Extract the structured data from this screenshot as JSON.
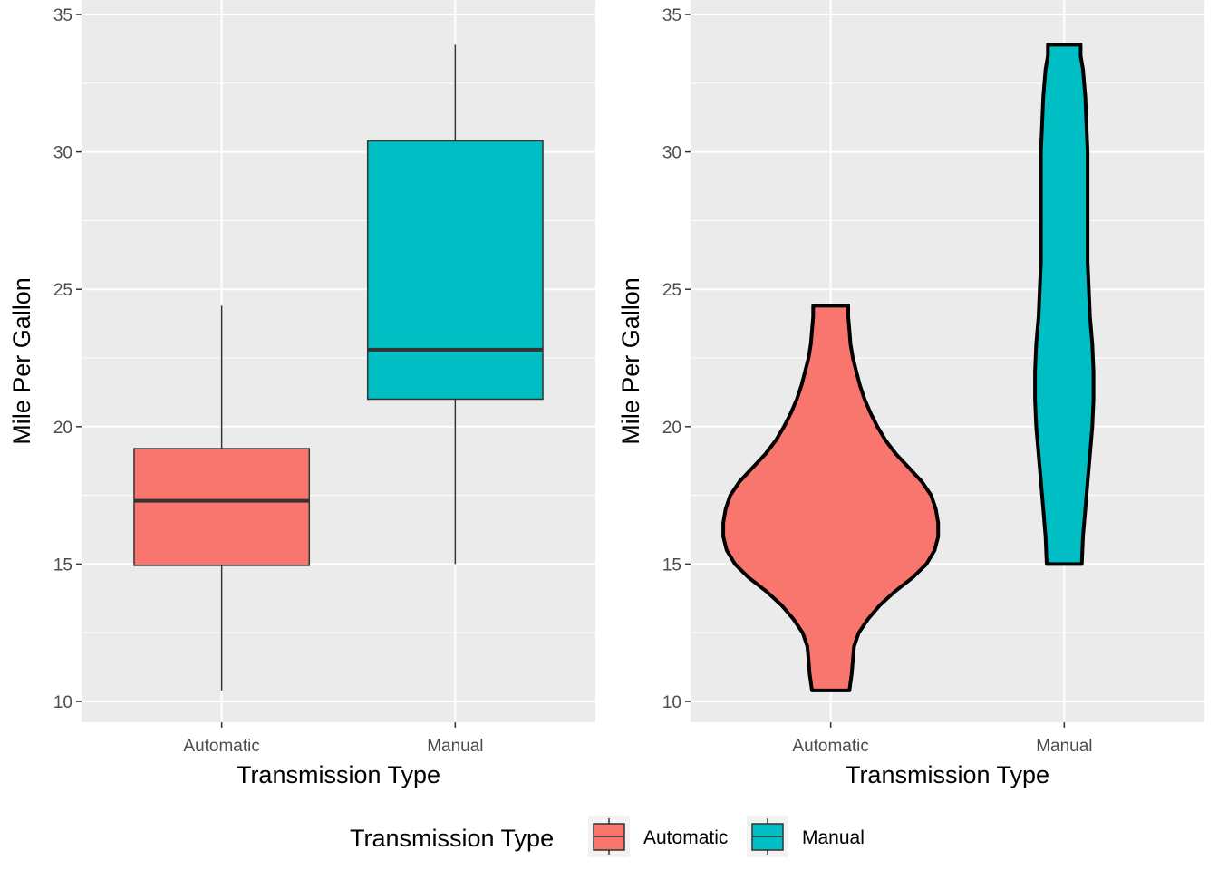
{
  "chart_data": [
    {
      "type": "box",
      "categories": [
        "Automatic",
        "Manual"
      ],
      "xlabel": "Transmission Type",
      "ylabel": "Mile Per Gallon",
      "ylim": [
        9.2,
        35
      ],
      "yticks": [
        10,
        15,
        20,
        25,
        30,
        35
      ],
      "grid": true,
      "boxes": [
        {
          "category": "Automatic",
          "min": 10.4,
          "q1": 14.95,
          "median": 17.3,
          "q3": 19.2,
          "max": 24.4,
          "fill": "#F8766D"
        },
        {
          "category": "Manual",
          "min": 15.0,
          "q1": 21.0,
          "median": 22.8,
          "q3": 30.4,
          "max": 33.9,
          "fill": "#00BFC4"
        }
      ]
    },
    {
      "type": "violin",
      "categories": [
        "Automatic",
        "Manual"
      ],
      "xlabel": "Transmission Type",
      "ylabel": "Mile Per Gallon",
      "ylim": [
        9.2,
        35
      ],
      "yticks": [
        10,
        15,
        20,
        25,
        30,
        35
      ],
      "grid": true,
      "violins": [
        {
          "category": "Automatic",
          "fill": "#F8766D",
          "profile": [
            [
              10.4,
              0.16
            ],
            [
              11.0,
              0.18
            ],
            [
              11.5,
              0.19
            ],
            [
              12.0,
              0.2
            ],
            [
              12.5,
              0.24
            ],
            [
              13.0,
              0.32
            ],
            [
              13.5,
              0.42
            ],
            [
              14.0,
              0.55
            ],
            [
              14.5,
              0.7
            ],
            [
              15.0,
              0.82
            ],
            [
              15.5,
              0.89
            ],
            [
              16.0,
              0.92
            ],
            [
              16.5,
              0.92
            ],
            [
              17.0,
              0.9
            ],
            [
              17.5,
              0.86
            ],
            [
              18.0,
              0.78
            ],
            [
              18.5,
              0.67
            ],
            [
              19.0,
              0.56
            ],
            [
              19.5,
              0.47
            ],
            [
              20.0,
              0.4
            ],
            [
              20.5,
              0.34
            ],
            [
              21.0,
              0.29
            ],
            [
              21.5,
              0.25
            ],
            [
              22.0,
              0.22
            ],
            [
              22.5,
              0.19
            ],
            [
              23.0,
              0.17
            ],
            [
              23.5,
              0.16
            ],
            [
              24.0,
              0.15
            ],
            [
              24.4,
              0.15
            ]
          ]
        },
        {
          "category": "Manual",
          "fill": "#00BFC4",
          "profile": [
            [
              15.0,
              0.15
            ],
            [
              16.0,
              0.16
            ],
            [
              17.0,
              0.18
            ],
            [
              18.0,
              0.2
            ],
            [
              19.0,
              0.22
            ],
            [
              20.0,
              0.24
            ],
            [
              21.0,
              0.25
            ],
            [
              22.0,
              0.25
            ],
            [
              23.0,
              0.24
            ],
            [
              24.0,
              0.22
            ],
            [
              25.0,
              0.21
            ],
            [
              26.0,
              0.2
            ],
            [
              27.0,
              0.2
            ],
            [
              28.0,
              0.2
            ],
            [
              29.0,
              0.2
            ],
            [
              30.0,
              0.2
            ],
            [
              31.0,
              0.19
            ],
            [
              32.0,
              0.18
            ],
            [
              33.0,
              0.16
            ],
            [
              33.5,
              0.14
            ],
            [
              33.9,
              0.14
            ]
          ]
        }
      ]
    }
  ],
  "legend": {
    "title": "Transmission Type",
    "items": [
      {
        "label": "Automatic",
        "color": "#F8766D"
      },
      {
        "label": "Manual",
        "color": "#00BFC4"
      }
    ]
  }
}
